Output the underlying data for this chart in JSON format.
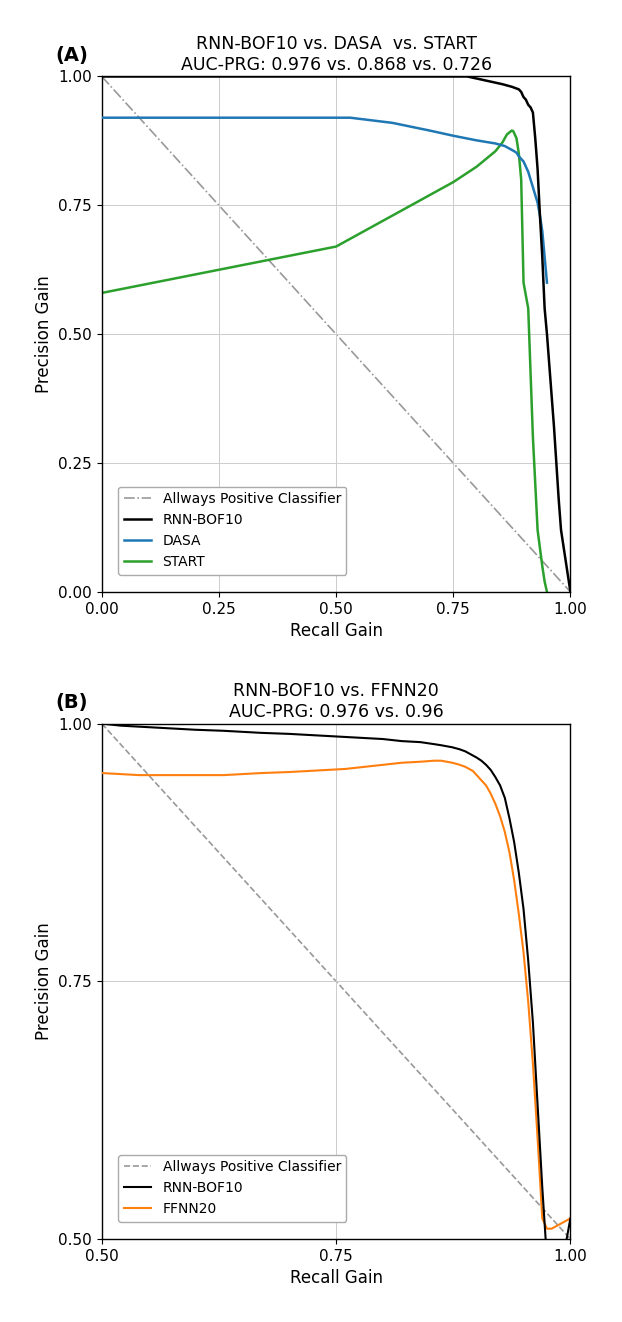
{
  "panel_A": {
    "title": "RNN-BOF10 vs. DASA  vs. START",
    "subtitle": "AUC-PRG: 0.976 vs. 0.868 vs. 0.726",
    "xlabel": "Recall Gain",
    "ylabel": "Precision Gain",
    "xlim": [
      0.0,
      1.0
    ],
    "ylim": [
      0.0,
      1.0
    ],
    "label_letter": "(A)",
    "rnn_color": "#000000",
    "dasa_color": "#1f77b4",
    "start_color": "#2ca02c",
    "baseline_color": "#999999",
    "legend_labels": [
      "Allways Positive Classifier",
      "RNN-BOF10",
      "DASA",
      "START"
    ],
    "rnn_rg": [
      0.0,
      0.6,
      0.6,
      0.78,
      0.83,
      0.855,
      0.875,
      0.89,
      0.895,
      0.9,
      0.905,
      0.91,
      0.915,
      0.92,
      0.925,
      0.93,
      0.935,
      0.94,
      0.945,
      0.95,
      0.955,
      0.96,
      0.965,
      0.97,
      0.975,
      0.98,
      1.0
    ],
    "rnn_pg": [
      1.0,
      1.0,
      1.0,
      1.0,
      0.99,
      0.985,
      0.98,
      0.975,
      0.97,
      0.96,
      0.955,
      0.945,
      0.94,
      0.93,
      0.88,
      0.82,
      0.73,
      0.65,
      0.55,
      0.5,
      0.44,
      0.38,
      0.32,
      0.25,
      0.18,
      0.12,
      0.0
    ],
    "dasa_rg": [
      0.0,
      0.53,
      0.62,
      0.7,
      0.75,
      0.8,
      0.84,
      0.86,
      0.88,
      0.885,
      0.89,
      0.895,
      0.9,
      0.905,
      0.91,
      0.915,
      0.92,
      0.925,
      0.93,
      0.935,
      0.94,
      0.945,
      0.95
    ],
    "dasa_pg": [
      0.92,
      0.92,
      0.91,
      0.895,
      0.885,
      0.876,
      0.87,
      0.865,
      0.855,
      0.852,
      0.845,
      0.84,
      0.835,
      0.825,
      0.815,
      0.8,
      0.785,
      0.77,
      0.755,
      0.73,
      0.7,
      0.65,
      0.6
    ],
    "start_rg": [
      0.0,
      0.5,
      0.6,
      0.7,
      0.75,
      0.8,
      0.84,
      0.855,
      0.863,
      0.865,
      0.868,
      0.872,
      0.875,
      0.878,
      0.88,
      0.885,
      0.89,
      0.895,
      0.9,
      0.91,
      0.92,
      0.93,
      0.94,
      0.945,
      0.95
    ],
    "start_pg": [
      0.58,
      0.67,
      0.72,
      0.77,
      0.795,
      0.825,
      0.855,
      0.872,
      0.885,
      0.888,
      0.89,
      0.893,
      0.895,
      0.894,
      0.89,
      0.88,
      0.85,
      0.8,
      0.6,
      0.55,
      0.3,
      0.12,
      0.05,
      0.02,
      0.0
    ]
  },
  "panel_B": {
    "title": "RNN-BOF10 vs. FFNN20",
    "subtitle": "AUC-PRG: 0.976 vs. 0.96",
    "xlabel": "Recall Gain",
    "ylabel": "Precision Gain",
    "xlim": [
      0.5,
      1.0
    ],
    "ylim": [
      0.5,
      1.0
    ],
    "label_letter": "(B)",
    "rnn_color": "#000000",
    "ffnn_color": "#ff7f0e",
    "baseline_color": "#999999",
    "legend_labels": [
      "Allways Positive Classifier",
      "RNN-BOF10",
      "FFNN20"
    ],
    "rnn_rg": [
      0.5,
      0.52,
      0.54,
      0.56,
      0.58,
      0.6,
      0.63,
      0.65,
      0.67,
      0.7,
      0.72,
      0.74,
      0.76,
      0.78,
      0.8,
      0.82,
      0.84,
      0.855,
      0.862,
      0.868,
      0.874,
      0.878,
      0.882,
      0.885,
      0.888,
      0.89,
      0.892,
      0.894,
      0.896,
      0.898,
      0.9,
      0.905,
      0.91,
      0.915,
      0.92,
      0.925,
      0.93,
      0.935,
      0.94,
      0.945,
      0.95,
      0.955,
      0.96,
      0.965,
      0.97,
      0.975,
      0.98,
      1.0
    ],
    "rnn_pg": [
      1.0,
      0.998,
      0.997,
      0.996,
      0.995,
      0.994,
      0.993,
      0.992,
      0.991,
      0.99,
      0.989,
      0.988,
      0.987,
      0.986,
      0.985,
      0.983,
      0.982,
      0.98,
      0.979,
      0.978,
      0.977,
      0.976,
      0.975,
      0.974,
      0.973,
      0.972,
      0.971,
      0.97,
      0.969,
      0.968,
      0.967,
      0.964,
      0.96,
      0.955,
      0.948,
      0.94,
      0.928,
      0.908,
      0.885,
      0.855,
      0.82,
      0.77,
      0.71,
      0.63,
      0.55,
      0.48,
      0.42,
      0.52
    ],
    "ffnn_rg": [
      0.5,
      0.52,
      0.54,
      0.56,
      0.58,
      0.6,
      0.63,
      0.65,
      0.67,
      0.7,
      0.72,
      0.74,
      0.76,
      0.78,
      0.8,
      0.82,
      0.84,
      0.855,
      0.862,
      0.868,
      0.874,
      0.878,
      0.882,
      0.885,
      0.888,
      0.89,
      0.892,
      0.894,
      0.896,
      0.898,
      0.9,
      0.905,
      0.91,
      0.915,
      0.92,
      0.925,
      0.93,
      0.935,
      0.94,
      0.945,
      0.95,
      0.955,
      0.96,
      0.965,
      0.97,
      0.975,
      0.98,
      1.0
    ],
    "ffnn_pg": [
      0.952,
      0.951,
      0.95,
      0.95,
      0.95,
      0.95,
      0.95,
      0.951,
      0.952,
      0.953,
      0.954,
      0.955,
      0.956,
      0.958,
      0.96,
      0.962,
      0.963,
      0.964,
      0.964,
      0.963,
      0.962,
      0.961,
      0.96,
      0.959,
      0.958,
      0.957,
      0.956,
      0.955,
      0.954,
      0.952,
      0.95,
      0.945,
      0.94,
      0.932,
      0.922,
      0.91,
      0.895,
      0.875,
      0.848,
      0.815,
      0.778,
      0.73,
      0.67,
      0.598,
      0.52,
      0.51,
      0.51,
      0.52
    ]
  }
}
